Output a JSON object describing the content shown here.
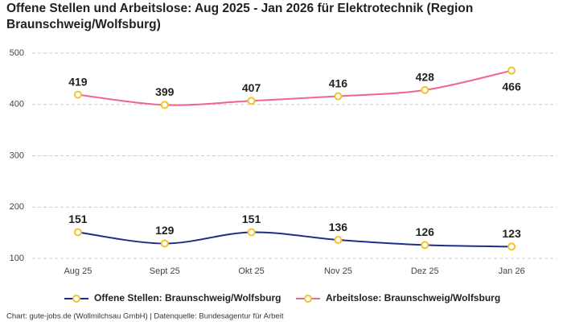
{
  "chart_data": {
    "type": "line",
    "title": "Offene Stellen und Arbeitslose: Aug 2025 - Jan 2026 für Elektrotechnik (Region Braunschweig/Wolfsburg)",
    "categories": [
      "Aug 25",
      "Sept 25",
      "Okt 25",
      "Nov 25",
      "Dez 25",
      "Jan 26"
    ],
    "series": [
      {
        "name": "Offene Stellen: Braunschweig/Wolfsburg",
        "color": "#1f2d8a",
        "values": [
          151,
          129,
          151,
          136,
          126,
          123
        ]
      },
      {
        "name": "Arbeitslose: Braunschweig/Wolfsburg",
        "color": "#f0668a",
        "values": [
          419,
          399,
          407,
          416,
          428,
          466
        ]
      }
    ],
    "marker_color": "#f2c230",
    "ylim": [
      100,
      500
    ],
    "yticks": [
      100,
      200,
      300,
      400,
      500
    ],
    "grid": true,
    "source": "Chart: gute-jobs.de (Wollmilchsau GmbH) | Datenquelle: Bundesagentur für Arbeit"
  }
}
